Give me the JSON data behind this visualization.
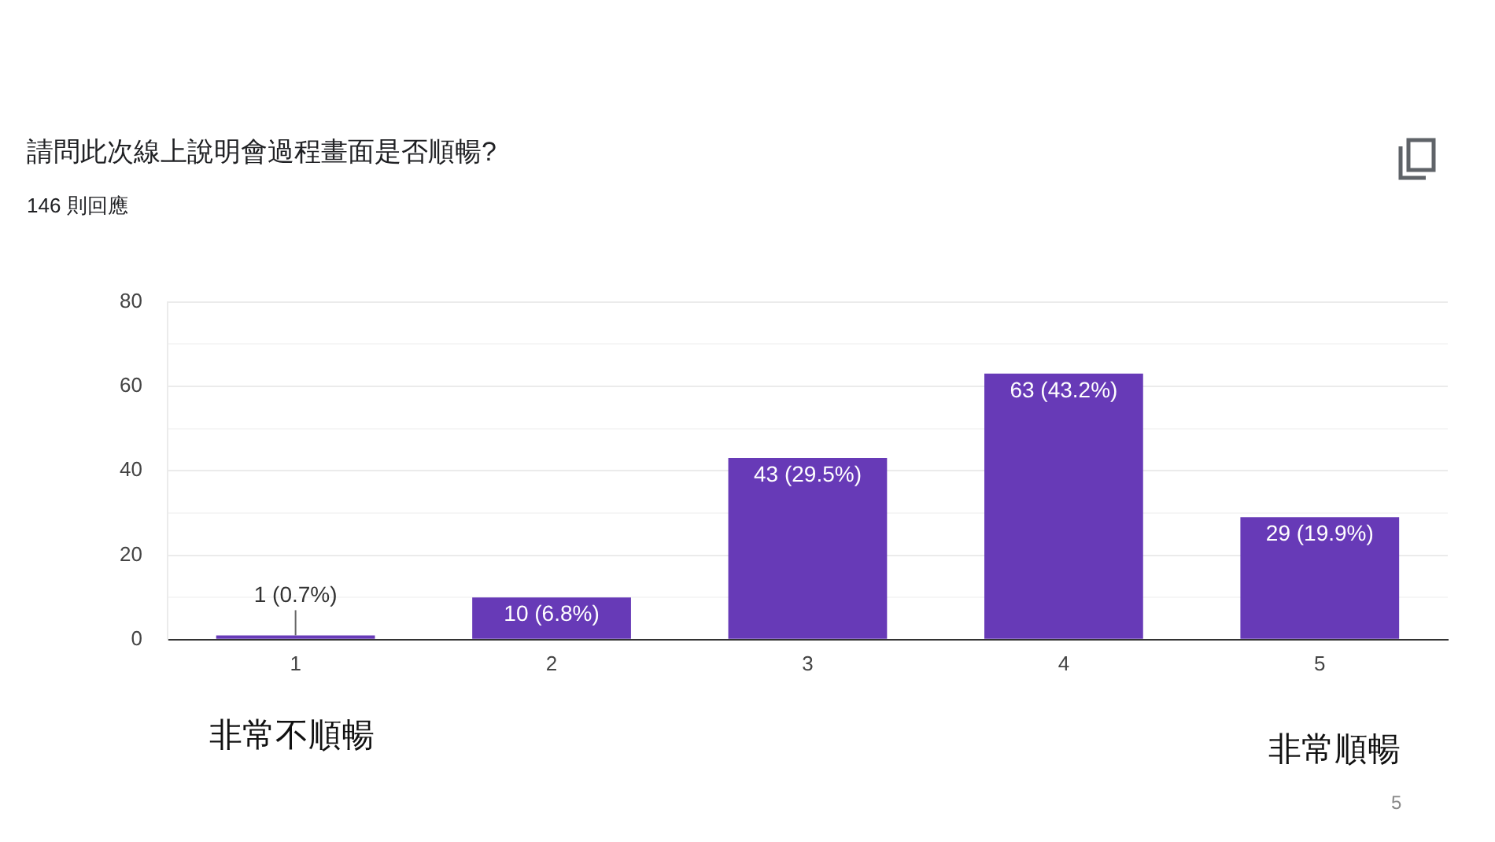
{
  "chart_data": {
    "type": "bar",
    "title": "請問此次線上說明會過程畫面是否順暢?",
    "subtitle": "146 則回應",
    "categories": [
      "1",
      "2",
      "3",
      "4",
      "5"
    ],
    "values": [
      1,
      10,
      43,
      63,
      29
    ],
    "value_labels": [
      "1 (0.7%)",
      "10 (6.8%)",
      "43 (29.5%)",
      "63 (43.2%)",
      "29 (19.9%)"
    ],
    "color": "#673ab7",
    "ylim": [
      0,
      80
    ],
    "yticks": [
      0,
      {
        "value": 10,
        "label": null
      },
      20,
      {
        "value": 30,
        "label": null
      },
      40,
      {
        "value": 50,
        "label": null
      },
      60,
      {
        "value": 70,
        "label": null
      },
      80
    ],
    "grid": "y",
    "legend": false,
    "annotations": [
      "非常不順暢",
      "非常順暢",
      "5"
    ]
  }
}
